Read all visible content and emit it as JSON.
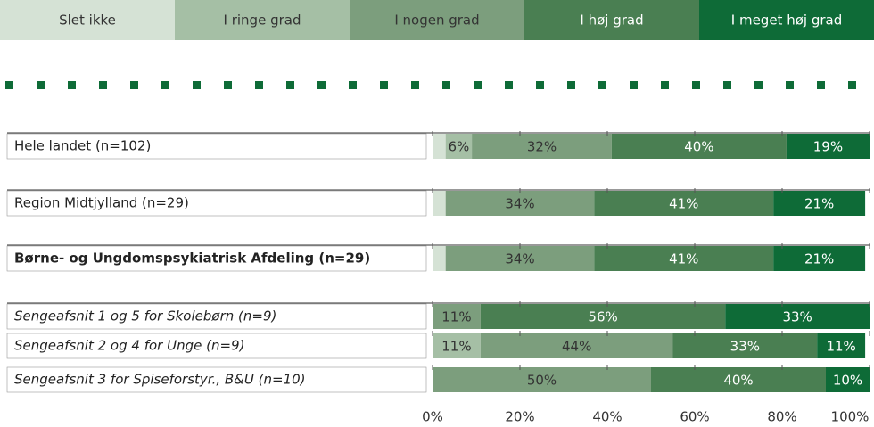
{
  "chart_data": {
    "type": "stacked-bar-horizontal",
    "categories": [
      "Hele landet (n=102)",
      "Region Midtjylland (n=29)",
      "Børne- og Ungdomspsykiatrisk Afdeling (n=29)",
      "Sengeafsnit 1 og 5 for Skolebørn (n=9)",
      "Sengeafsnit 2 og 4 for Unge (n=9)",
      "Sengeafsnit 3 for Spiseforstyr., B&U (n=10)"
    ],
    "series": [
      {
        "name": "Slet ikke",
        "color": "#d5e2d5",
        "values": [
          3,
          3,
          3,
          null,
          null,
          null
        ],
        "value_labels": [
          null,
          null,
          null,
          null,
          null,
          null
        ]
      },
      {
        "name": "I ringe grad",
        "color": "#a5bfa5",
        "values": [
          6,
          null,
          null,
          null,
          11,
          null
        ],
        "value_labels": [
          "6%",
          null,
          null,
          null,
          "11%",
          null
        ]
      },
      {
        "name": "I nogen grad",
        "color": "#7c9e7d",
        "values": [
          32,
          34,
          34,
          11,
          44,
          50
        ],
        "value_labels": [
          "32%",
          "34%",
          "34%",
          "11%",
          "44%",
          "50%"
        ]
      },
      {
        "name": "I høj grad",
        "color": "#4a7f52",
        "values": [
          40,
          41,
          41,
          56,
          33,
          40
        ],
        "value_labels": [
          "40%",
          "41%",
          "41%",
          "56%",
          "33%",
          "40%"
        ]
      },
      {
        "name": "I meget høj grad",
        "color": "#0e6b37",
        "values": [
          19,
          21,
          21,
          33,
          11,
          10
        ],
        "value_labels": [
          "19%",
          "21%",
          "21%",
          "33%",
          "11%",
          "10%"
        ]
      }
    ],
    "xlim": [
      0,
      100
    ],
    "xticks": [
      {
        "value": 0,
        "label": "0%"
      },
      {
        "value": 20,
        "label": "20%"
      },
      {
        "value": 40,
        "label": "40%"
      },
      {
        "value": 60,
        "label": "60%"
      },
      {
        "value": 80,
        "label": "80%"
      },
      {
        "value": 100,
        "label": "100%"
      }
    ]
  }
}
